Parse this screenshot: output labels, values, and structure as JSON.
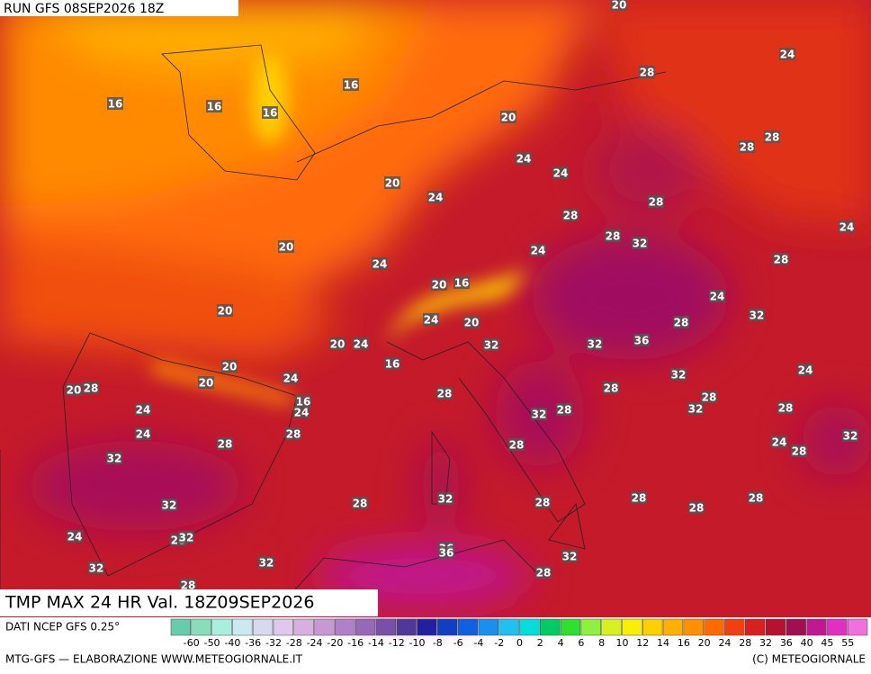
{
  "header": {
    "run": "RUN GFS 08SEP2026 18Z"
  },
  "title": "TMP MAX 24 HR Val. 18Z09SEP2026",
  "source": "DATI NCEP GFS 0.25°",
  "footer_left": "MTG-GFS — ELABORAZIONE WWW.METEOGIORNALE.IT",
  "footer_right": "(C) METEOGIORNALE",
  "map_labels": [
    20,
    24,
    28,
    16,
    16,
    16,
    16,
    20,
    28,
    28,
    24,
    24,
    20,
    24,
    28,
    28,
    24,
    20,
    28,
    32,
    24,
    28,
    24,
    20,
    16,
    24,
    20,
    32,
    24,
    20,
    28,
    20,
    24,
    32,
    32,
    36,
    16,
    20,
    24,
    24,
    32,
    20,
    20,
    28,
    28,
    28,
    28,
    16,
    24,
    24,
    32,
    28,
    32,
    28,
    24,
    28,
    28,
    28,
    24,
    28,
    32,
    32,
    32,
    28,
    28,
    28,
    28,
    32,
    28,
    24,
    28,
    32,
    36,
    36,
    32,
    32,
    32,
    28,
    28
  ],
  "legend": {
    "ticks": [
      -60,
      -50,
      -40,
      -36,
      -32,
      -28,
      -24,
      -20,
      -16,
      -14,
      -12,
      -10,
      -8,
      -6,
      -4,
      -2,
      0,
      2,
      4,
      6,
      8,
      10,
      12,
      14,
      16,
      20,
      24,
      28,
      32,
      36,
      40,
      45,
      55
    ],
    "colors": [
      "#66ccaa",
      "#88ddbb",
      "#aaeedd",
      "#cce9f0",
      "#d8d8f0",
      "#e0c8ec",
      "#d8b0e0",
      "#c898d4",
      "#b080c8",
      "#9868b8",
      "#7850a8",
      "#503898",
      "#2020a0",
      "#1040c0",
      "#1060e0",
      "#1890f0",
      "#20c0f0",
      "#00dddd",
      "#00cc66",
      "#30e030",
      "#90f040",
      "#d8f020",
      "#f8f000",
      "#ffd000",
      "#ffb000",
      "#ff9000",
      "#ff6a00",
      "#f04010",
      "#d82020",
      "#b81030",
      "#a01050",
      "#c01890",
      "#e030c0",
      "#f070e0"
    ]
  }
}
